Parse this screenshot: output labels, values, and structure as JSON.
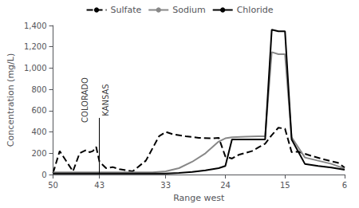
{
  "chart_data": {
    "type": "line",
    "xlabel": "Range west",
    "ylabel": "Concentration (mg/L)",
    "xlim": [
      50,
      6
    ],
    "ylim": [
      0,
      1400
    ],
    "xticks": [
      50,
      43,
      33,
      24,
      15,
      6
    ],
    "yticks": [
      0,
      200,
      400,
      600,
      800,
      {
        "value": 1000,
        "label": "1,000"
      },
      {
        "value": 1200,
        "label": "1,200"
      },
      {
        "value": 1400,
        "label": "1,400"
      }
    ],
    "grid": false,
    "legend": "top",
    "series": [
      {
        "name": "Sulfate",
        "color": "#000000",
        "line_style": "dashed",
        "x": [
          50,
          49,
          47,
          46,
          45,
          44.5,
          44,
          43.5,
          43,
          42.5,
          42,
          41,
          40,
          39,
          38,
          36,
          34,
          33,
          32,
          30,
          28,
          26,
          25,
          24,
          23,
          22,
          20,
          19,
          18,
          17,
          16,
          15,
          14,
          13,
          11,
          9,
          7,
          6
        ],
        "values": [
          15,
          220,
          30,
          200,
          230,
          210,
          220,
          260,
          120,
          90,
          60,
          70,
          50,
          40,
          30,
          130,
          360,
          400,
          380,
          360,
          345,
          340,
          345,
          170,
          150,
          185,
          220,
          255,
          290,
          370,
          440,
          430,
          210,
          215,
          175,
          140,
          110,
          65
        ]
      },
      {
        "name": "Sodium",
        "color": "#888888",
        "line_style": "solid",
        "x": [
          50,
          48,
          46,
          44,
          43,
          41,
          39,
          37,
          35,
          33,
          31,
          29,
          27,
          25,
          24,
          23,
          21,
          19,
          18,
          17,
          16,
          15,
          14,
          12,
          10,
          8,
          6
        ],
        "values": [
          20,
          20,
          20,
          20,
          20,
          20,
          20,
          20,
          20,
          30,
          60,
          120,
          200,
          310,
          340,
          350,
          355,
          360,
          360,
          1150,
          1130,
          1130,
          350,
          160,
          130,
          100,
          55
        ]
      },
      {
        "name": "Chloride",
        "color": "#000000",
        "line_style": "solid",
        "x": [
          50,
          48,
          46,
          44,
          43,
          41,
          39,
          37,
          35,
          33,
          31,
          29,
          27,
          25,
          24,
          23,
          21,
          19,
          18,
          17,
          16,
          15,
          14,
          12,
          10,
          8,
          6
        ],
        "values": [
          10,
          10,
          10,
          10,
          10,
          10,
          10,
          10,
          10,
          10,
          15,
          25,
          40,
          60,
          80,
          330,
          330,
          330,
          330,
          1360,
          1345,
          1345,
          330,
          100,
          80,
          65,
          45
        ]
      }
    ],
    "vline": {
      "x": 43,
      "y_start": 0,
      "y_end": 532,
      "color": "#000000"
    },
    "annotations": [
      {
        "text": "COLORADO",
        "x": 45.2,
        "y": 700,
        "color": "#000000"
      },
      {
        "text": "KANSAS",
        "x": 42.0,
        "y": 700,
        "color": "#000000"
      }
    ]
  }
}
